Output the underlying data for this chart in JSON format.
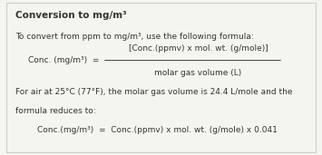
{
  "title": "Conversion to mg/m³",
  "bg_color": "#f5f5f0",
  "border_color": "#cccccc",
  "text_color": "#333333",
  "line1": "To convert from ppm to mg/m³, use the following formula:",
  "formula_left": "Conc. (mg/m³)  =",
  "formula_numerator": "[Conc.(ppmv) x mol. wt. (g/mole)]",
  "formula_denominator": "molar gas volume (L)",
  "para2_line1": "For air at 25°C (77°F), the molar gas volume is 24.4 L/mole and the",
  "para2_line2": "formula reduces to:",
  "formula2": "Conc.(mg/m³)  =  Conc.(ppmv) x mol. wt. (g/mole) x 0.041"
}
